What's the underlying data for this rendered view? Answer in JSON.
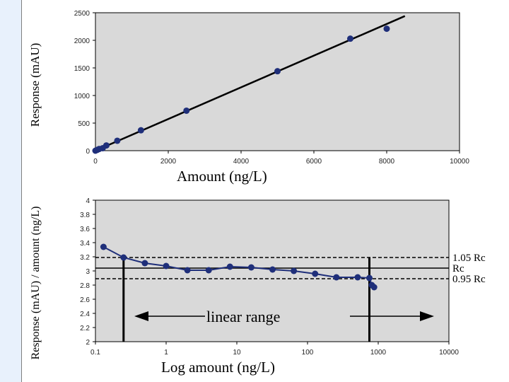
{
  "theme": {
    "plot_bg": "#d9d9d9",
    "marker": "#1f2f7a",
    "line": "#000000",
    "slide_strip": "#e8f1fc"
  },
  "chart_data": [
    {
      "type": "scatter",
      "title": "",
      "xlabel": "Amount (ng/L)",
      "ylabel": "Response (mAU)",
      "xlim": [
        0,
        10000
      ],
      "ylim": [
        0,
        2500
      ],
      "x_ticks": [
        "0",
        "2000",
        "4000",
        "6000",
        "8000",
        "10000"
      ],
      "y_ticks": [
        "0",
        "500",
        "1000",
        "1500",
        "2000",
        "2500"
      ],
      "grid": false,
      "points": {
        "x": [
          0,
          50,
          100,
          200,
          300,
          600,
          1250,
          2500,
          5000,
          7000,
          8000
        ],
        "y": [
          0,
          15,
          30,
          45,
          95,
          180,
          370,
          725,
          1440,
          2030,
          2210
        ]
      },
      "fit_line": {
        "from": [
          0,
          0
        ],
        "to": [
          8500,
          2440
        ]
      }
    },
    {
      "type": "line",
      "title": "",
      "xlabel": "Log amount (ng/L)",
      "ylabel": "Response (mAU) / amount (ng/L)",
      "x_scale": "log",
      "xlim": [
        0.1,
        10000
      ],
      "ylim": [
        2,
        4
      ],
      "x_ticks": [
        "0.1",
        "1",
        "10",
        "100",
        "1000",
        "10000"
      ],
      "y_ticks": [
        "2",
        "2.2",
        "2.4",
        "2.6",
        "2.8",
        "3",
        "3.2",
        "3.4",
        "3.6",
        "3.8",
        "4"
      ],
      "grid": false,
      "series": [
        {
          "x": [
            0.13,
            0.25,
            0.5,
            1,
            2,
            4,
            8,
            16,
            32,
            64,
            128,
            256,
            512,
            750,
            812,
            875
          ],
          "y": [
            3.34,
            3.19,
            3.11,
            3.07,
            3.01,
            3.01,
            3.06,
            3.05,
            3.02,
            3.0,
            2.96,
            2.91,
            2.91,
            2.9,
            2.8,
            2.77
          ]
        }
      ],
      "reference_lines": [
        {
          "label": "1.05 Rc",
          "y": 3.19,
          "style": "dashed"
        },
        {
          "label": "Rc",
          "y": 3.04,
          "style": "solid"
        },
        {
          "label": "0.95 Rc",
          "y": 2.89,
          "style": "dashed"
        }
      ],
      "range_markers": [
        0.25,
        750
      ],
      "annotation": "linear range"
    }
  ]
}
